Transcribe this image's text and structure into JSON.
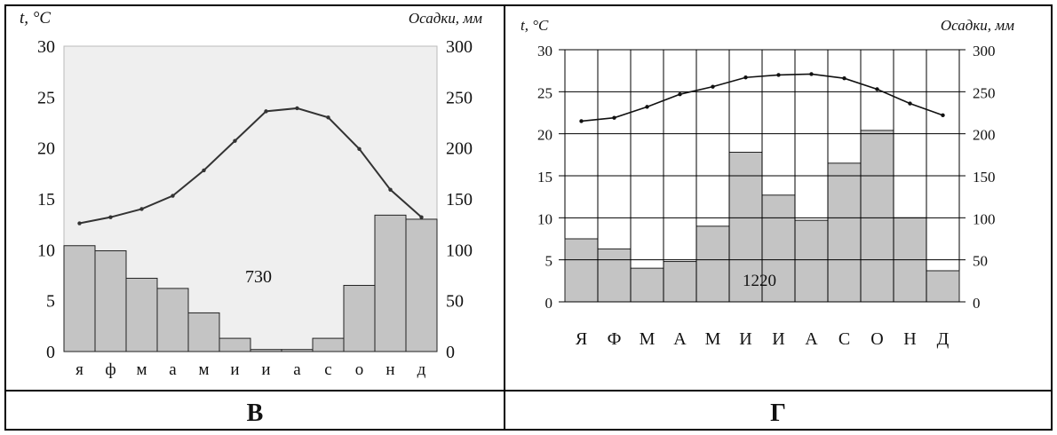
{
  "panels": [
    {
      "caption": "В",
      "left_axis_label": "t, °C",
      "right_axis_label": "Осадки, мм",
      "total_label": "730",
      "chart_data": {
        "type": "bar",
        "categories": [
          "я",
          "ф",
          "м",
          "а",
          "м",
          "и",
          "и",
          "а",
          "с",
          "о",
          "н",
          "д"
        ],
        "temp_ylim": [
          0,
          30
        ],
        "temp_ticks": [
          "0",
          "5",
          "10",
          "15",
          "20",
          "25",
          "30"
        ],
        "precip_ylim": [
          0,
          300
        ],
        "precip_ticks": [
          "0",
          "50",
          "100",
          "150",
          "200",
          "250",
          "300"
        ],
        "temperature": [
          12.6,
          13.2,
          14.0,
          15.3,
          17.8,
          20.7,
          23.6,
          23.9,
          23.0,
          19.9,
          15.9,
          13.2
        ],
        "precipitation": [
          104,
          99,
          72,
          62,
          38,
          13,
          2,
          2,
          13,
          65,
          134,
          130
        ],
        "grid": false
      }
    },
    {
      "caption": "Г",
      "left_axis_label": "t, °C",
      "right_axis_label": "Осадки, мм",
      "total_label": "1220",
      "chart_data": {
        "type": "bar",
        "categories": [
          "Я",
          "Ф",
          "М",
          "А",
          "М",
          "И",
          "И",
          "А",
          "С",
          "О",
          "Н",
          "Д"
        ],
        "temp_ylim": [
          0,
          30
        ],
        "temp_ticks": [
          "0",
          "5",
          "10",
          "15",
          "20",
          "25",
          "30"
        ],
        "precip_ylim": [
          0,
          300
        ],
        "precip_ticks": [
          "0",
          "50",
          "100",
          "150",
          "200",
          "250",
          "300"
        ],
        "temperature": [
          21.5,
          21.9,
          23.2,
          24.7,
          25.6,
          26.7,
          27.0,
          27.1,
          26.6,
          25.3,
          23.6,
          22.2
        ],
        "precipitation": [
          75,
          63,
          40,
          48,
          90,
          178,
          127,
          97,
          165,
          204,
          100,
          37
        ],
        "grid": true
      }
    }
  ]
}
